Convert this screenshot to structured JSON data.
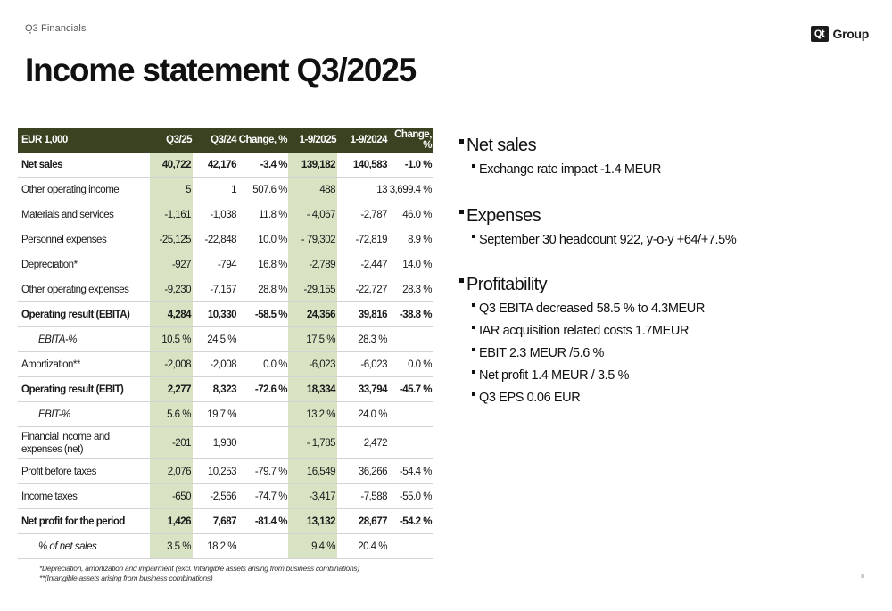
{
  "header": {
    "section": "Q3 Financials",
    "logo_mark": "Qt",
    "logo_text": "Group"
  },
  "title": "Income statement Q3/2025",
  "table": {
    "headers": [
      "EUR 1,000",
      "Q3/25",
      "Q3/24",
      "Change, %",
      "1-9/2025",
      "1-9/2024",
      "Change, %"
    ],
    "rows": [
      {
        "cells": [
          "Net sales",
          "40,722",
          "42,176",
          "-3.4 %",
          "139,182",
          "140,583",
          "-1.0 %"
        ]
      },
      {
        "cells": [
          "Other operating income",
          "5",
          "1",
          "507.6 %",
          "488",
          "13",
          "3,699.4 %"
        ]
      },
      {
        "cells": [
          "Materials and services",
          "-1,161",
          "-1,038",
          "11.8 %",
          "- 4,067",
          "-2,787",
          "46.0 %"
        ]
      },
      {
        "cells": [
          "Personnel expenses",
          "-25,125",
          "-22,848",
          "10.0 %",
          "- 79,302",
          "-72,819",
          "8.9 %"
        ]
      },
      {
        "cells": [
          "Depreciation*",
          "-927",
          "-794",
          "16.8 %",
          "-2,789",
          "-2,447",
          "14.0 %"
        ]
      },
      {
        "cells": [
          "Other operating expenses",
          "-9,230",
          "-7,167",
          "28.8 %",
          "-29,155",
          "-22,727",
          "28.3 %"
        ]
      },
      {
        "cells": [
          "Operating result (EBITA)",
          "4,284",
          "10,330",
          "-58.5 %",
          "24,356",
          "39,816",
          "-38.8 %"
        ]
      },
      {
        "cells": [
          "EBITA-%",
          "10.5 %",
          "24.5 %",
          "",
          "17.5 %",
          "28.3 %",
          ""
        ]
      },
      {
        "cells": [
          "Amortization**",
          "-2,008",
          "-2,008",
          "0.0 %",
          "-6,023",
          "-6,023",
          "0.0 %"
        ]
      },
      {
        "cells": [
          "Operating result (EBIT)",
          "2,277",
          "8,323",
          "-72.6 %",
          "18,334",
          "33,794",
          "-45.7 %"
        ]
      },
      {
        "cells": [
          "EBIT-%",
          "5.6 %",
          "19.7 %",
          "",
          "13.2 %",
          "24.0 %",
          ""
        ]
      },
      {
        "cells": [
          "Financial income and expenses (net)",
          "-201",
          "1,930",
          "",
          "- 1,785",
          "2,472",
          ""
        ]
      },
      {
        "cells": [
          "Profit before taxes",
          "2,076",
          "10,253",
          "-79.7 %",
          "16,549",
          "36,266",
          "-54.4 %"
        ]
      },
      {
        "cells": [
          "Income taxes",
          "-650",
          "-2,566",
          "-74.7 %",
          "-3,417",
          "-7,588",
          "-55.0 %"
        ]
      },
      {
        "cells": [
          "Net profit for the period",
          "1,426",
          "7,687",
          "-81.4 %",
          "13,132",
          "28,677",
          "-54.2 %"
        ]
      },
      {
        "cells": [
          "% of net sales",
          "3.5 %",
          "18.2 %",
          "",
          "9.4 %",
          "20.4 %",
          ""
        ]
      }
    ]
  },
  "bullets": {
    "net_sales": {
      "heading": "Net sales",
      "items": [
        "Exchange rate impact -1.4 MEUR"
      ]
    },
    "expenses": {
      "heading": "Expenses",
      "items": [
        "September 30 headcount 922, y-o-y +64/+7.5%"
      ]
    },
    "profitability": {
      "heading": "Profitability",
      "items": [
        "Q3 EBITA decreased 58.5 % to 4.3MEUR",
        "IAR acquisition related costs 1.7MEUR",
        "EBIT 2.3 MEUR /5.6 %",
        "Net profit 1.4 MEUR / 3.5 %",
        "Q3 EPS 0.06 EUR"
      ]
    }
  },
  "footnotes": [
    "*Depreciation, amortization and impairment (excl. Intangible assets arising from business combinations)",
    "**(Intangible assets arising from business combinations)"
  ],
  "page_number": "8"
}
